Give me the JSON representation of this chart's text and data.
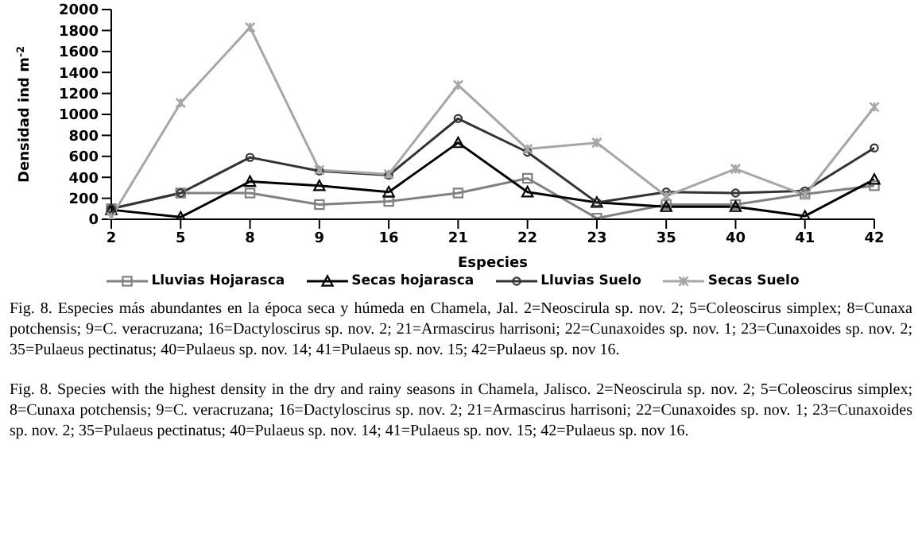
{
  "chart_data": {
    "type": "line",
    "xlabel": "Especies",
    "ylabel": "Densidad ind m$^{-2}$",
    "categories": [
      "2",
      "5",
      "8",
      "9",
      "16",
      "21",
      "22",
      "23",
      "35",
      "40",
      "41",
      "42"
    ],
    "series": [
      {
        "name": "Lluvias Hojarasca",
        "color": "#808080",
        "marker": "square",
        "values": [
          100,
          250,
          250,
          140,
          170,
          250,
          390,
          10,
          140,
          140,
          240,
          320
        ]
      },
      {
        "name": "Secas hojarasca",
        "color": "#000000",
        "marker": "triangle",
        "values": [
          90,
          20,
          360,
          320,
          260,
          730,
          260,
          160,
          120,
          120,
          30,
          380
        ]
      },
      {
        "name": "Lluvias Suelo",
        "color": "#333333",
        "marker": "circle",
        "values": [
          100,
          250,
          590,
          460,
          420,
          960,
          640,
          160,
          260,
          250,
          270,
          680
        ]
      },
      {
        "name": "Secas Suelo",
        "color": "#a6a6a6",
        "marker": "cross",
        "values": [
          20,
          1110,
          1830,
          470,
          430,
          1280,
          670,
          730,
          220,
          480,
          230,
          1070
        ]
      }
    ],
    "ylim": [
      0,
      2000
    ],
    "yticks": [
      0,
      200,
      400,
      600,
      800,
      1000,
      1200,
      1400,
      1600,
      1800,
      2000
    ],
    "grid": false,
    "legend": "bottom",
    "line_style": "solid",
    "annotations": [
      "Fig. 8. Especies más abundantes en la época seca y húmeda en Chamela, Jal. 2=Neoscirula sp. nov. 2; 5=Coleoscirus simplex; 8=Cunaxa potchensis; 9=C. veracruzana; 16=Dactyloscirus sp. nov. 2; 21=Armascirus harrisoni; 22=Cunaxoides sp. nov. 1; 23=Cunaxoides sp. nov. 2; 35=Pulaeus pectinatus; 40=Pulaeus sp. nov. 14; 41=Pulaeus sp. nov. 15; 42=Pulaeus sp. nov 16.",
      "Fig. 8. Species with the highest density in the dry and rainy seasons in Chamela, Jalisco. 2=Neoscirula sp. nov. 2; 5=Coleoscirus simplex; 8=Cunaxa potchensis; 9=C. veracruzana; 16=Dactyloscirus sp. nov. 2; 21=Armascirus harrisoni; 22=Cunaxoides sp. nov. 1; 23=Cunaxoides sp. nov. 2; 35=Pulaeus pectinatus; 40=Pulaeus sp. nov. 14; 41=Pulaeus sp. nov. 15; 42=Pulaeus sp. nov 16."
    ]
  }
}
